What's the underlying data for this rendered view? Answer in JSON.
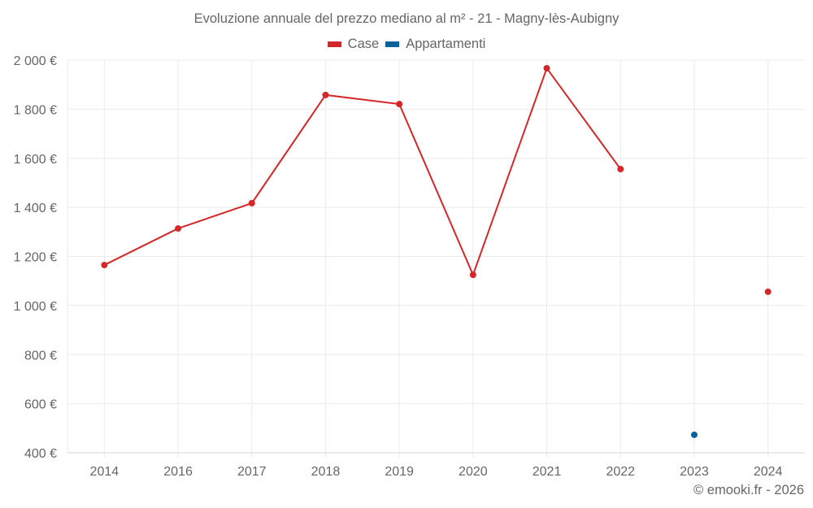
{
  "title": "Evoluzione annuale del prezzo mediano al m² - 21 - Magny-lès-Aubigny",
  "legend": [
    {
      "label": "Case",
      "color": "#d62728"
    },
    {
      "label": "Appartamenti",
      "color": "#0a5f9a"
    }
  ],
  "footer": "© emooki.fr - 2026",
  "y_tick_labels": [
    "2 000 €",
    "1 800 €",
    "1 600 €",
    "1 400 €",
    "1 200 €",
    "1 000 €",
    "800 €",
    "600 €",
    "400 €"
  ],
  "chart_data": {
    "type": "line",
    "title": "Evoluzione annuale del prezzo mediano al m² - 21 - Magny-lès-Aubigny",
    "xlabel": "",
    "ylabel": "",
    "categories": [
      "2014",
      "2016",
      "2017",
      "2018",
      "2019",
      "2020",
      "2021",
      "2022",
      "2023",
      "2024"
    ],
    "series": [
      {
        "name": "Case",
        "color": "#d62728",
        "values": [
          1165,
          1314,
          1417,
          1858,
          1821,
          1125,
          1967,
          1556,
          null,
          1056
        ]
      },
      {
        "name": "Appartamenti",
        "color": "#0a5f9a",
        "values": [
          null,
          null,
          null,
          null,
          null,
          null,
          null,
          null,
          473,
          null
        ]
      }
    ],
    "ylim": [
      400,
      2000
    ],
    "y_ticks": [
      400,
      600,
      800,
      1000,
      1200,
      1400,
      1600,
      1800,
      2000
    ],
    "y_tick_labels": [
      "400 €",
      "600 €",
      "800 €",
      "1 000 €",
      "1 200 €",
      "1 400 €",
      "1 600 €",
      "1 800 €",
      "2 000 €"
    ],
    "grid": true,
    "legend_position": "top-center"
  }
}
